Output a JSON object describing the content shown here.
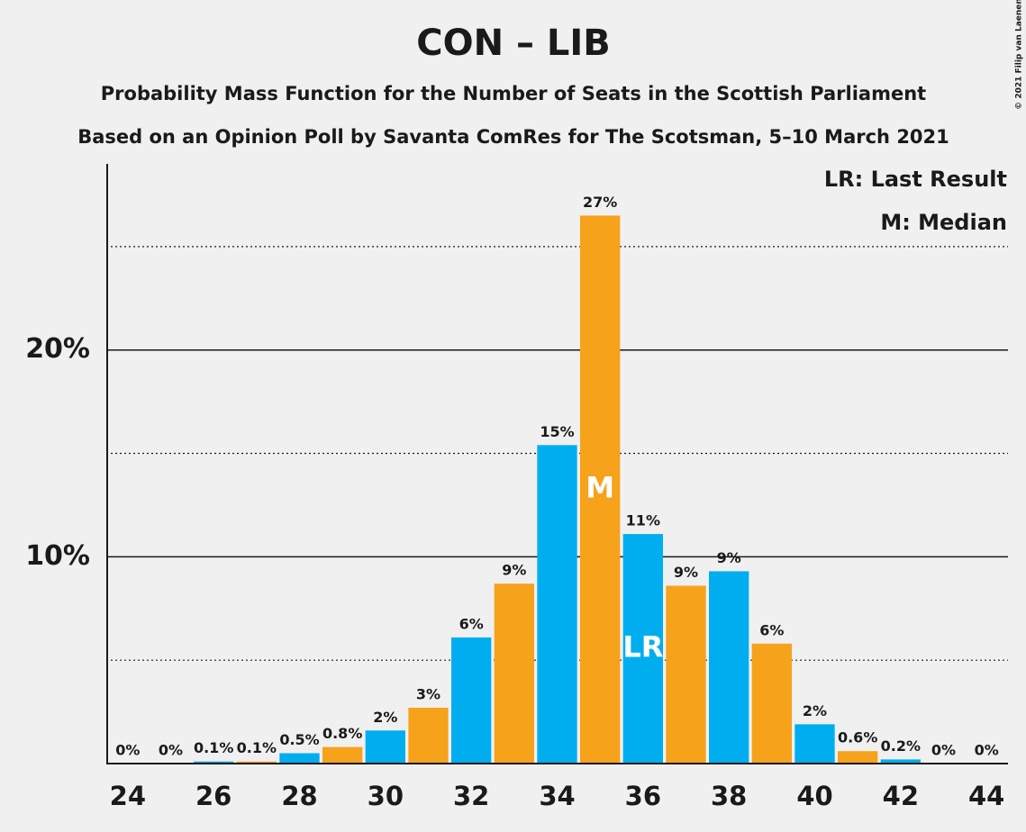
{
  "chart_data": {
    "type": "bar",
    "title": "CON – LIB",
    "subtitle": "Probability Mass Function for the Number of Seats in the Scottish Parliament",
    "subtitle2": "Based on an Opinion Poll by Savanta ComRes for The Scotsman, 5–10 March 2021",
    "copyright": "© 2021 Filip van Laenen",
    "x": [
      24,
      25,
      26,
      27,
      28,
      29,
      30,
      31,
      32,
      33,
      34,
      35,
      36,
      37,
      38,
      39,
      40,
      41,
      42,
      43,
      44
    ],
    "values": [
      0,
      0,
      0.1,
      0.1,
      0.5,
      0.8,
      1.6,
      2.7,
      6.1,
      8.7,
      15.4,
      26.5,
      11.1,
      8.6,
      9.3,
      5.8,
      1.9,
      0.6,
      0.2,
      0,
      0
    ],
    "value_labels": [
      "0%",
      "0%",
      "0.1%",
      "0.1%",
      "0.5%",
      "0.8%",
      "2%",
      "3%",
      "6%",
      "9%",
      "15%",
      "27%",
      "11%",
      "9%",
      "9%",
      "6%",
      "2%",
      "0.6%",
      "0.2%",
      "0%",
      "0%"
    ],
    "colors": [
      "#00aeef",
      "#f7a21b",
      "#00aeef",
      "#f7a21b",
      "#00aeef",
      "#f7a21b",
      "#00aeef",
      "#f7a21b",
      "#00aeef",
      "#f7a21b",
      "#00aeef",
      "#f7a21b",
      "#00aeef",
      "#f7a21b",
      "#00aeef",
      "#f7a21b",
      "#00aeef",
      "#f7a21b",
      "#00aeef",
      "#f7a21b",
      "#00aeef"
    ],
    "xlim": [
      23.5,
      44.5
    ],
    "xticks": [
      24,
      26,
      28,
      30,
      32,
      34,
      36,
      38,
      40,
      42,
      44
    ],
    "ylim": [
      0,
      29
    ],
    "yticks": [
      {
        "value": 10,
        "label": "10%"
      },
      {
        "value": 20,
        "label": "20%"
      }
    ],
    "minor_yticks": [
      5,
      15,
      25
    ],
    "grid": true,
    "annotations": [
      {
        "x": 35,
        "text": "M"
      },
      {
        "x": 36,
        "text": "LR"
      }
    ],
    "legend_notes": [
      "LR: Last Result",
      "M: Median"
    ]
  }
}
